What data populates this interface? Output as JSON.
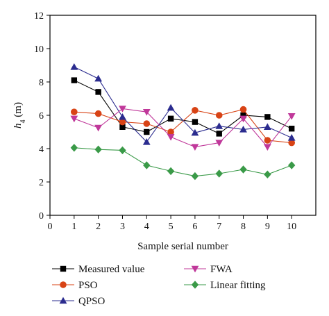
{
  "chart_data": {
    "type": "line",
    "xlabel": "Sample serial number",
    "ylabel_main": "h",
    "ylabel_sub": "4",
    "ylabel_unit": " (m)",
    "xlim": [
      0,
      11
    ],
    "ylim": [
      0,
      12
    ],
    "x_ticks": [
      0,
      1,
      2,
      3,
      4,
      5,
      6,
      7,
      8,
      9,
      10
    ],
    "y_ticks": [
      0,
      2,
      4,
      6,
      8,
      10,
      12
    ],
    "x": [
      1,
      2,
      3,
      4,
      5,
      6,
      7,
      8,
      9,
      10
    ],
    "grid": false,
    "legend_position": "bottom",
    "series": [
      {
        "name": "Measured value",
        "marker": "square",
        "color": "#000000",
        "values": [
          8.1,
          7.4,
          5.3,
          5.0,
          5.8,
          5.6,
          4.9,
          6.0,
          5.9,
          5.2
        ]
      },
      {
        "name": "PSO",
        "marker": "circle",
        "color": "#d84315",
        "values": [
          6.2,
          6.1,
          5.6,
          5.5,
          5.0,
          6.3,
          6.0,
          6.35,
          4.5,
          4.35
        ]
      },
      {
        "name": "QPSO",
        "marker": "triangle-up",
        "color": "#2b2c8f",
        "values": [
          8.9,
          8.2,
          5.9,
          4.4,
          6.45,
          4.95,
          5.35,
          5.15,
          5.3,
          4.65
        ]
      },
      {
        "name": "FWA",
        "marker": "triangle-down",
        "color": "#c0389a",
        "values": [
          5.8,
          5.25,
          6.4,
          6.2,
          4.7,
          4.1,
          4.35,
          5.8,
          4.1,
          5.95
        ]
      },
      {
        "name": "Linear fitting",
        "marker": "diamond",
        "color": "#3a9a48",
        "values": [
          4.05,
          3.95,
          3.9,
          3.0,
          2.65,
          2.35,
          2.5,
          2.75,
          2.45,
          3.0
        ]
      }
    ]
  }
}
